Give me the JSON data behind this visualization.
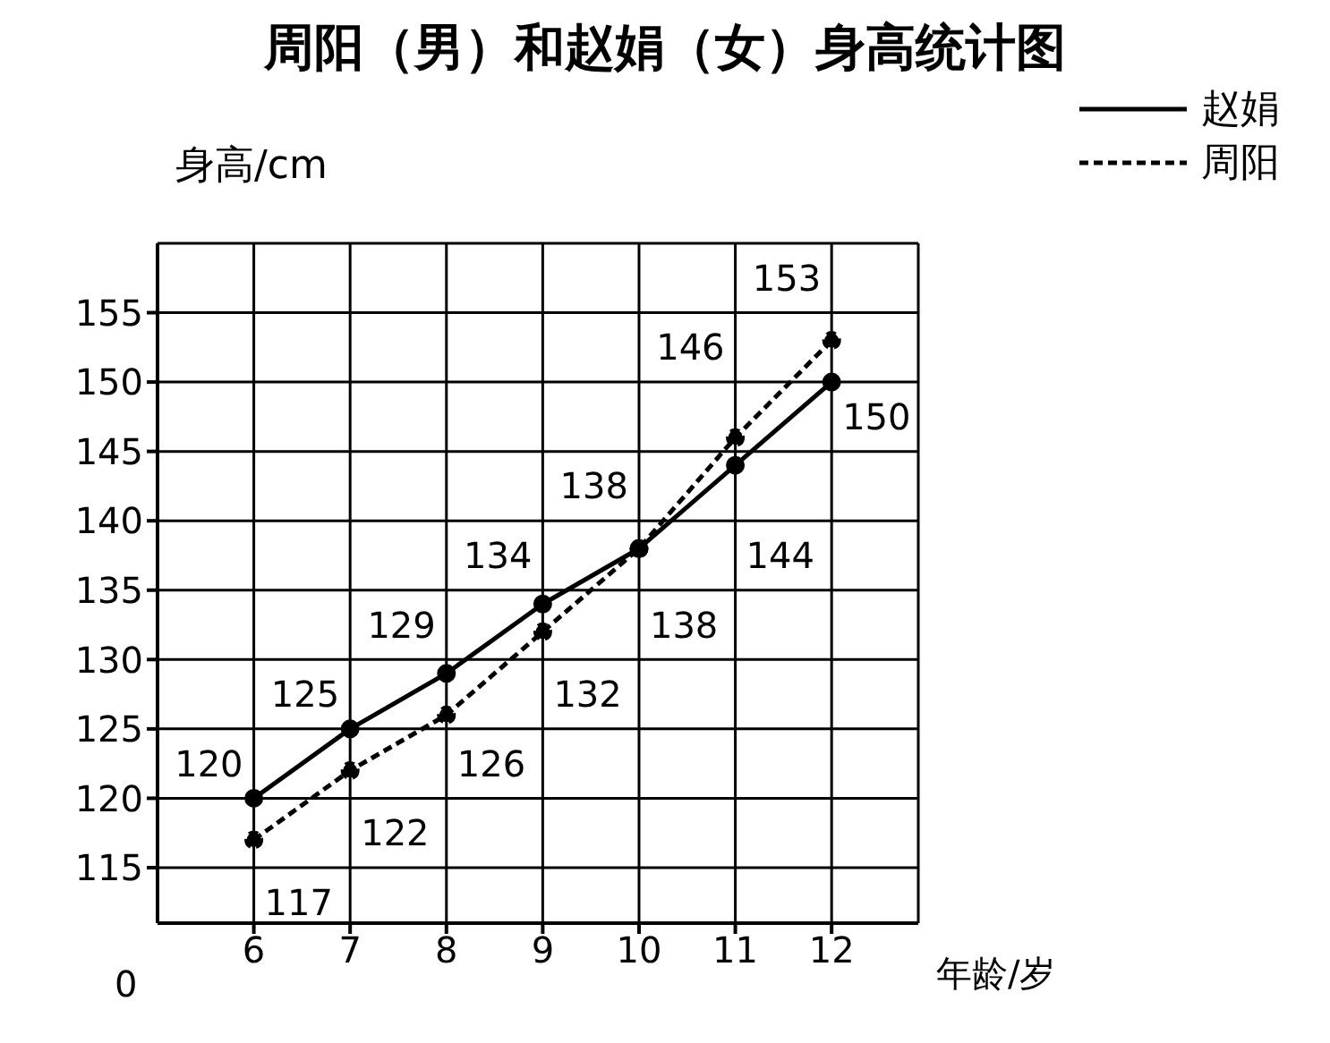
{
  "chart_data": {
    "type": "line",
    "title": "周阳（男）和赵娟（女）身高统计图",
    "xlabel": "年龄/岁",
    "ylabel": "身高/cm",
    "x": [
      6,
      7,
      8,
      9,
      10,
      11,
      12
    ],
    "xlim": [
      5,
      12.9
    ],
    "xticks": [
      6,
      7,
      8,
      9,
      10,
      11,
      12
    ],
    "ylim": [
      111,
      160
    ],
    "yticks": [
      115,
      120,
      125,
      130,
      135,
      140,
      145,
      150,
      155
    ],
    "annotations": [
      "0"
    ],
    "grid": true,
    "legend": "top right",
    "marker": "circle",
    "data_labels": true,
    "series": [
      {
        "name": "赵娟",
        "color": "#000000",
        "line_style": "solid",
        "values": [
          120,
          125,
          129,
          134,
          138,
          144,
          150
        ]
      },
      {
        "name": "周阳",
        "color": "#000000",
        "line_style": "dashed",
        "values": [
          117,
          122,
          126,
          132,
          138,
          146,
          153
        ]
      }
    ]
  }
}
